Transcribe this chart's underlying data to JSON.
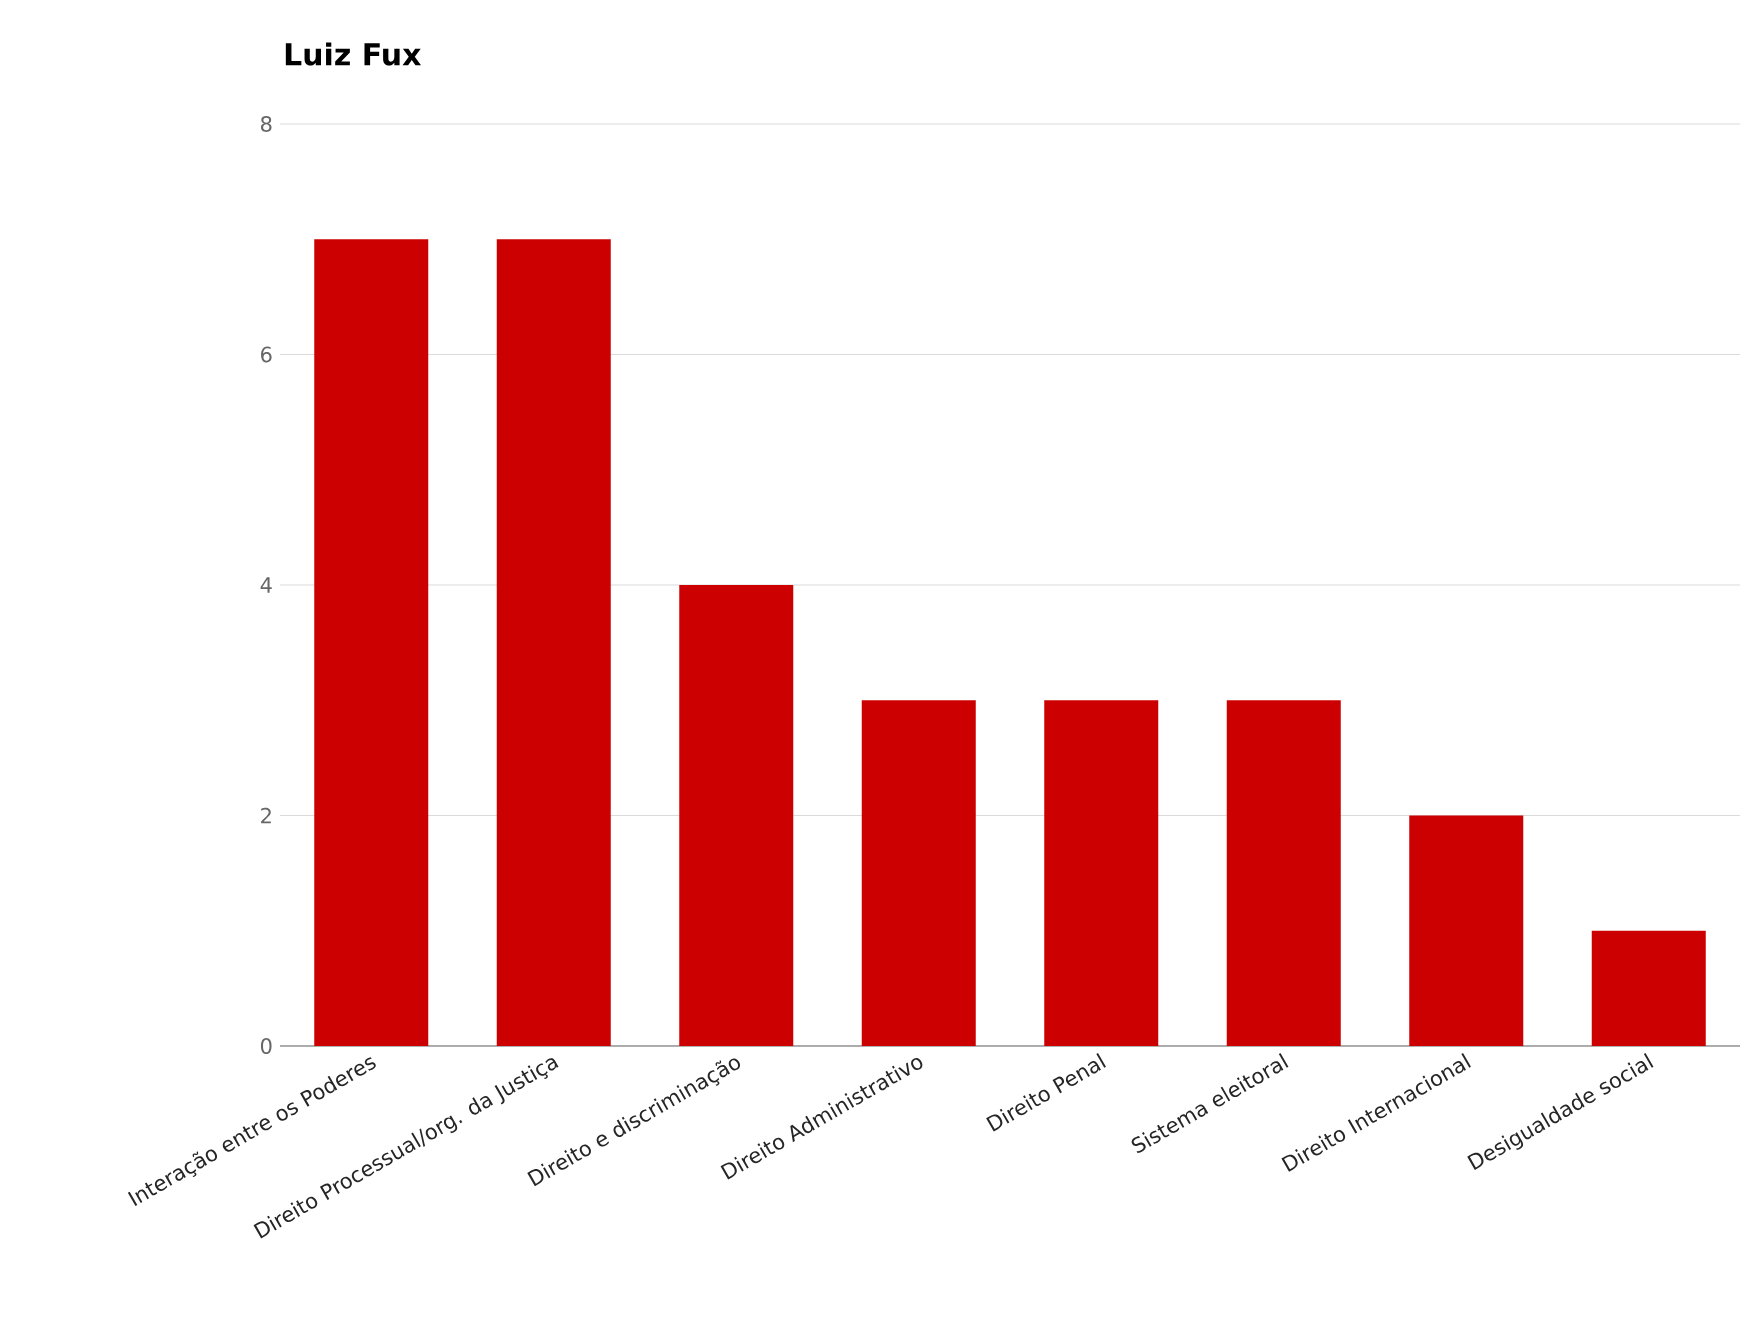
{
  "chart_data": {
    "type": "bar",
    "title": "Luiz Fux",
    "categories": [
      "Interação entre os Poderes",
      "Direito Processual/org. da Justiça",
      "Direito e discriminação",
      "Direito Administrativo",
      "Direito Penal",
      "Sistema eleitoral",
      "Direito Internacional",
      "Desigualdade social"
    ],
    "series": [
      {
        "color": "#cc0000",
        "values": [
          7,
          7,
          4,
          3,
          3,
          3,
          2,
          1
        ]
      }
    ],
    "ylim": [
      0,
      8
    ],
    "yticks": [
      0,
      2,
      4,
      6,
      8
    ],
    "grid": "y"
  }
}
